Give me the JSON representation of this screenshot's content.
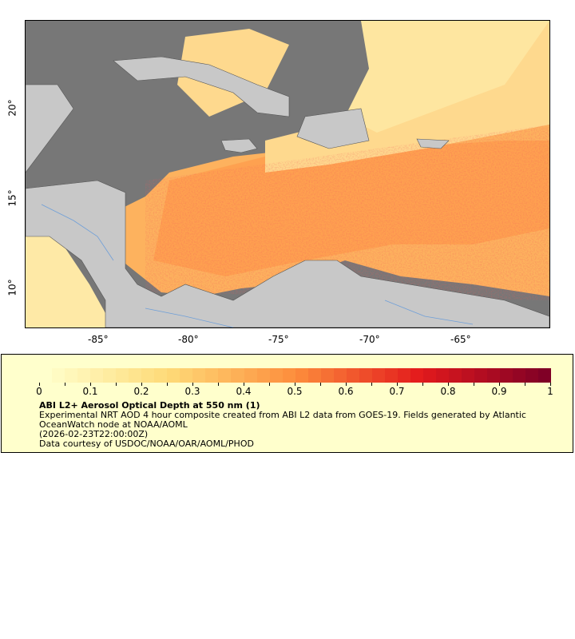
{
  "map": {
    "lon_ticks": [
      "-85°",
      "-80°",
      "-75°",
      "-70°",
      "-65°"
    ],
    "lat_ticks": [
      "20°",
      "15°",
      "10°"
    ],
    "colors": {
      "cloud_gap": "#777777",
      "land": "#c8c8c8",
      "border": "#555555",
      "river": "#6f9fd8",
      "low": "#ffffcc",
      "mid": "#fd8d3c",
      "high": "#800026"
    }
  },
  "legend": {
    "colorbar_labels": [
      "0",
      "0.1",
      "0.2",
      "0.3",
      "0.4",
      "0.5",
      "0.6",
      "0.7",
      "0.8",
      "0.9",
      "1"
    ],
    "colorbar_range": [
      0,
      1
    ],
    "title": "ABI L2+ Aerosol Optical Depth at 550 nm (1)",
    "description_line1": "Experimental NRT AOD 4 hour composite created from ABI L2 data from GOES-19. Fields generated by Atlantic",
    "description_line2": "OceanWatch node at NOAA/AOML",
    "time": "(2026-02-23T22:00:00Z)",
    "credit": "Data courtesy of USDOC/NOAA/OAR/AOML/PHOD"
  }
}
